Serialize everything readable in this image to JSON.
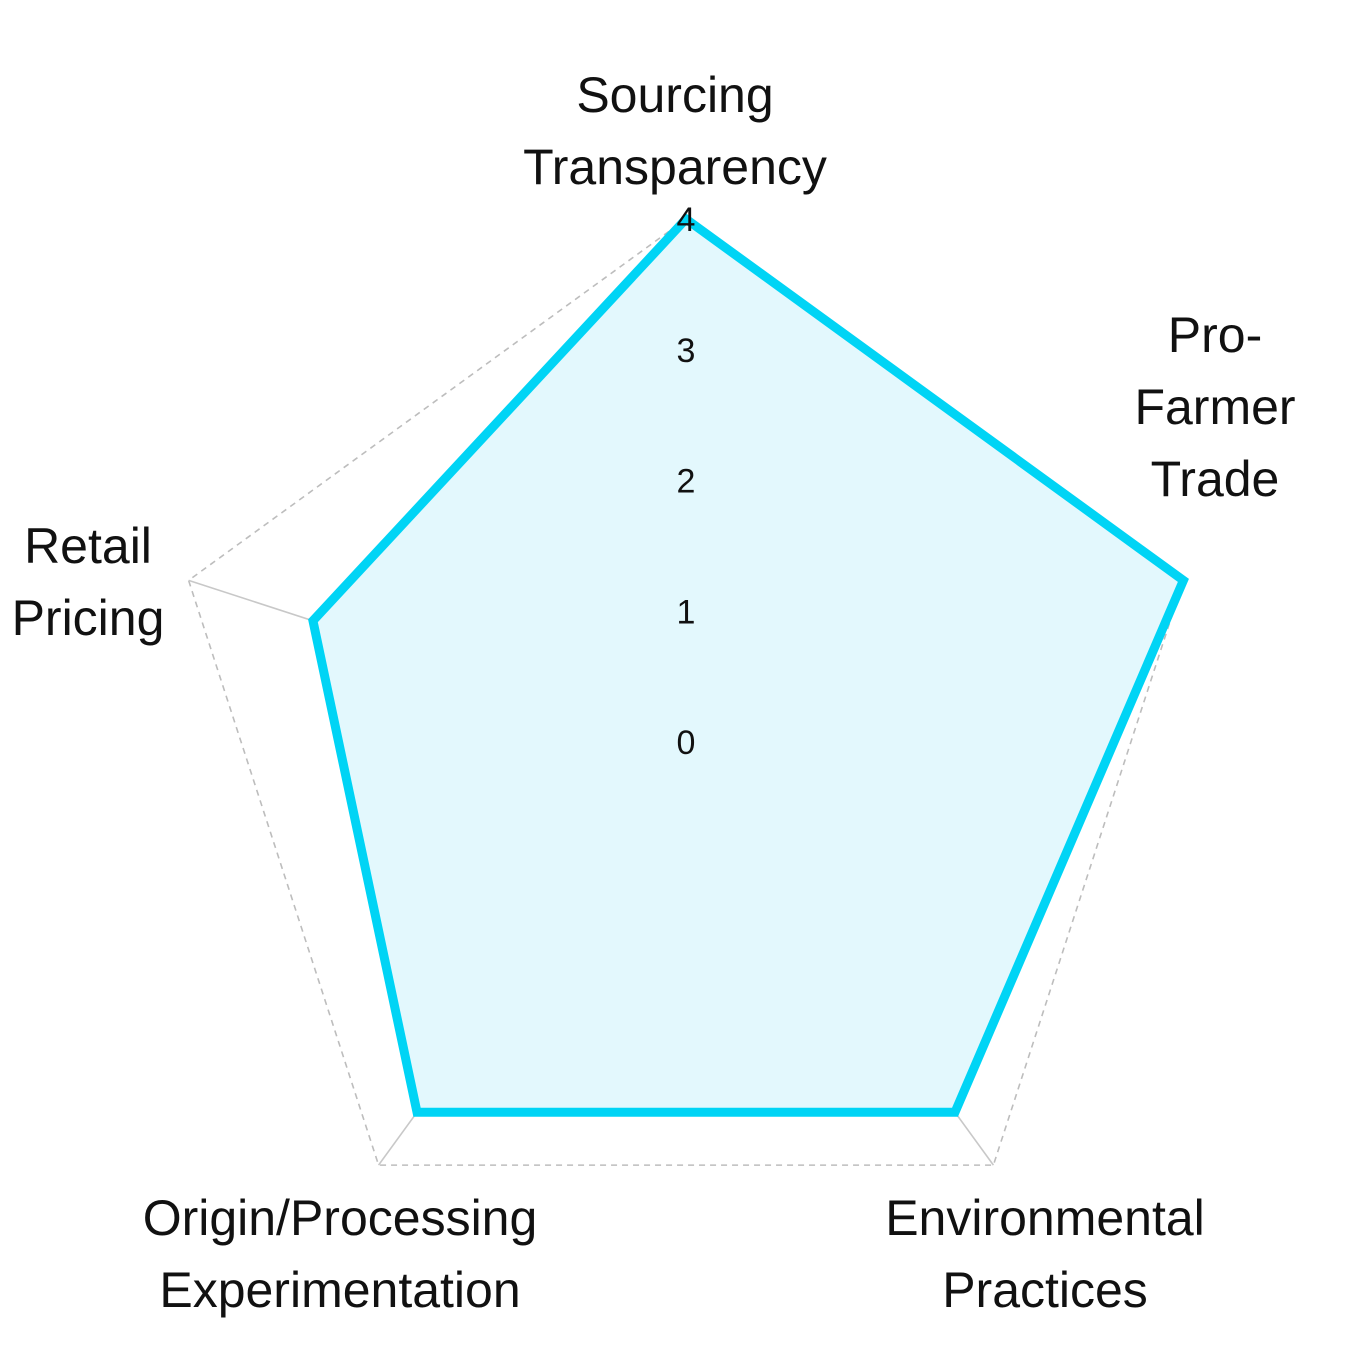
{
  "chart_data": {
    "type": "radar",
    "title": "",
    "categories": [
      "Sourcing Transparency",
      "Pro-Farmer Trade",
      "Environmental Practices",
      "Origin/Processing Experimentation",
      "Retail Pricing"
    ],
    "category_label_lines": [
      [
        "Sourcing",
        "Transparency"
      ],
      [
        "Pro-",
        "Farmer",
        "Trade"
      ],
      [
        "Environmental",
        "Practices"
      ],
      [
        "Origin/Processing",
        "Experimentation"
      ],
      [
        "Retail",
        "Pricing"
      ]
    ],
    "series": [
      {
        "values": [
          4,
          4,
          3.5,
          3.5,
          3
        ]
      }
    ],
    "rlim": [
      0,
      4
    ],
    "ticks": [
      "0",
      "1",
      "2",
      "3",
      "4"
    ],
    "grid": true,
    "colors": {
      "series_stroke": "#00d4f5",
      "series_fill": "#e3f8fd",
      "grid": "#bdbdbd",
      "spokes": "#c8c8c8",
      "text": "#111111"
    }
  }
}
